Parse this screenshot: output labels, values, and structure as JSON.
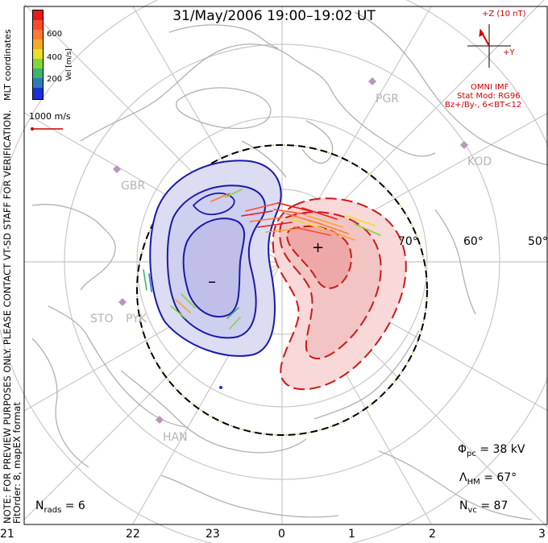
{
  "title": "31/May/2006 19:00–19:02 UT",
  "colorbar": {
    "label": "Vel [m/s]",
    "ticks": [
      "600",
      "400",
      "200"
    ],
    "colors": [
      "#e41a1c",
      "#ff4a2a",
      "#ff7a30",
      "#f7a82a",
      "#e8e02a",
      "#7fd838",
      "#3fb46a",
      "#2e7bb8",
      "#1a2fd6"
    ]
  },
  "coordinate_system": "MLT coordinates",
  "scale_vector": "1000 m/s",
  "notes": {
    "preview": "NOTE: FOR PREVIEW PURPOSES ONLY. PLEASE CONTACT VT-SD STAFF FOR VERIFICATION.",
    "fit": "FitOrder: 8, mapEX format"
  },
  "imf": {
    "z_label": "+Z (10 nT)",
    "y_label": "+Y",
    "source": "OMNI IMF",
    "model": "Stat Mod: RG96",
    "condition": "Bz+/By-, 6<BT<12"
  },
  "latitude_labels": [
    "70°",
    "60°",
    "50°"
  ],
  "stations": [
    "PGR",
    "KOD",
    "GBR",
    "STO",
    "PYK",
    "HAN"
  ],
  "potential_markers": {
    "min": "–",
    "max": "+"
  },
  "stats": {
    "phi_pc_sym": "Φ",
    "phi_pc_sub": "pc",
    "phi_pc_value": "= 38 kV",
    "lambda_sym": "Λ",
    "lambda_sub": "HM",
    "lambda_value": "= 67°",
    "nvc_sym": "N",
    "nvc_sub": "vc",
    "nvc_value": "= 87",
    "nrads_sym": "N",
    "nrads_sub": "rads",
    "nrads_value": "= 6"
  },
  "mlt_labels": [
    "21",
    "22",
    "23",
    "0",
    "1",
    "2",
    "3"
  ],
  "colors": {
    "negative_cell": "#1a1aa8",
    "negative_fill": "#c8c8ee",
    "positive_cell": "#cc1a1a",
    "positive_fill": "#f6c8c8",
    "grid": "#c8c8c8",
    "coast": "#b0b0b0"
  }
}
